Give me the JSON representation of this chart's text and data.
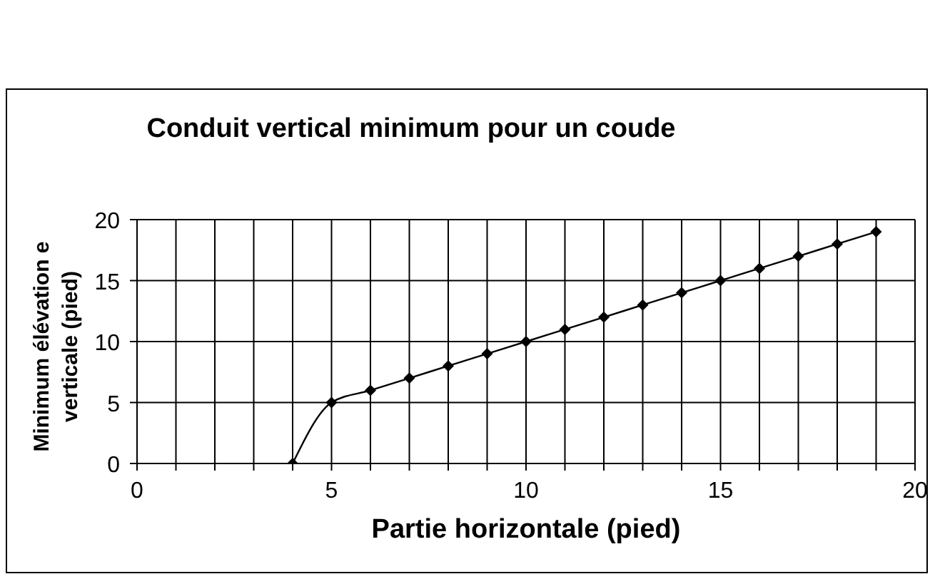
{
  "chart_data": {
    "type": "line",
    "title": "Conduit vertical minimum pour un coude",
    "xlabel": "Partie horizontale (pied)",
    "ylabel": "Minimum élévation e verticale (pied)",
    "x": [
      4,
      5,
      6,
      7,
      8,
      9,
      10,
      11,
      12,
      13,
      14,
      15,
      16,
      17,
      18,
      19
    ],
    "series": [
      {
        "color": "#000000",
        "values": [
          0,
          5,
          6,
          7,
          8,
          9,
          10,
          11,
          12,
          13,
          14,
          15,
          16,
          17,
          18,
          19
        ]
      }
    ],
    "xlim": [
      0,
      20
    ],
    "xticks": [
      0,
      {
        "value": 1,
        "label": null
      },
      {
        "value": 2,
        "label": null
      },
      {
        "value": 3,
        "label": null
      },
      {
        "value": 4,
        "label": null
      },
      5,
      {
        "value": 6,
        "label": null
      },
      {
        "value": 7,
        "label": null
      },
      {
        "value": 8,
        "label": null
      },
      {
        "value": 9,
        "label": null
      },
      10,
      {
        "value": 11,
        "label": null
      },
      {
        "value": 12,
        "label": null
      },
      {
        "value": 13,
        "label": null
      },
      {
        "value": 14,
        "label": null
      },
      15,
      {
        "value": 16,
        "label": null
      },
      {
        "value": 17,
        "label": null
      },
      {
        "value": 18,
        "label": null
      },
      {
        "value": 19,
        "label": null
      },
      20
    ],
    "ylim": [
      0,
      20
    ],
    "yticks": [
      0,
      5,
      10,
      15,
      20
    ],
    "grid": true,
    "marker": "diamond",
    "line_style": "solid",
    "legend": false
  }
}
